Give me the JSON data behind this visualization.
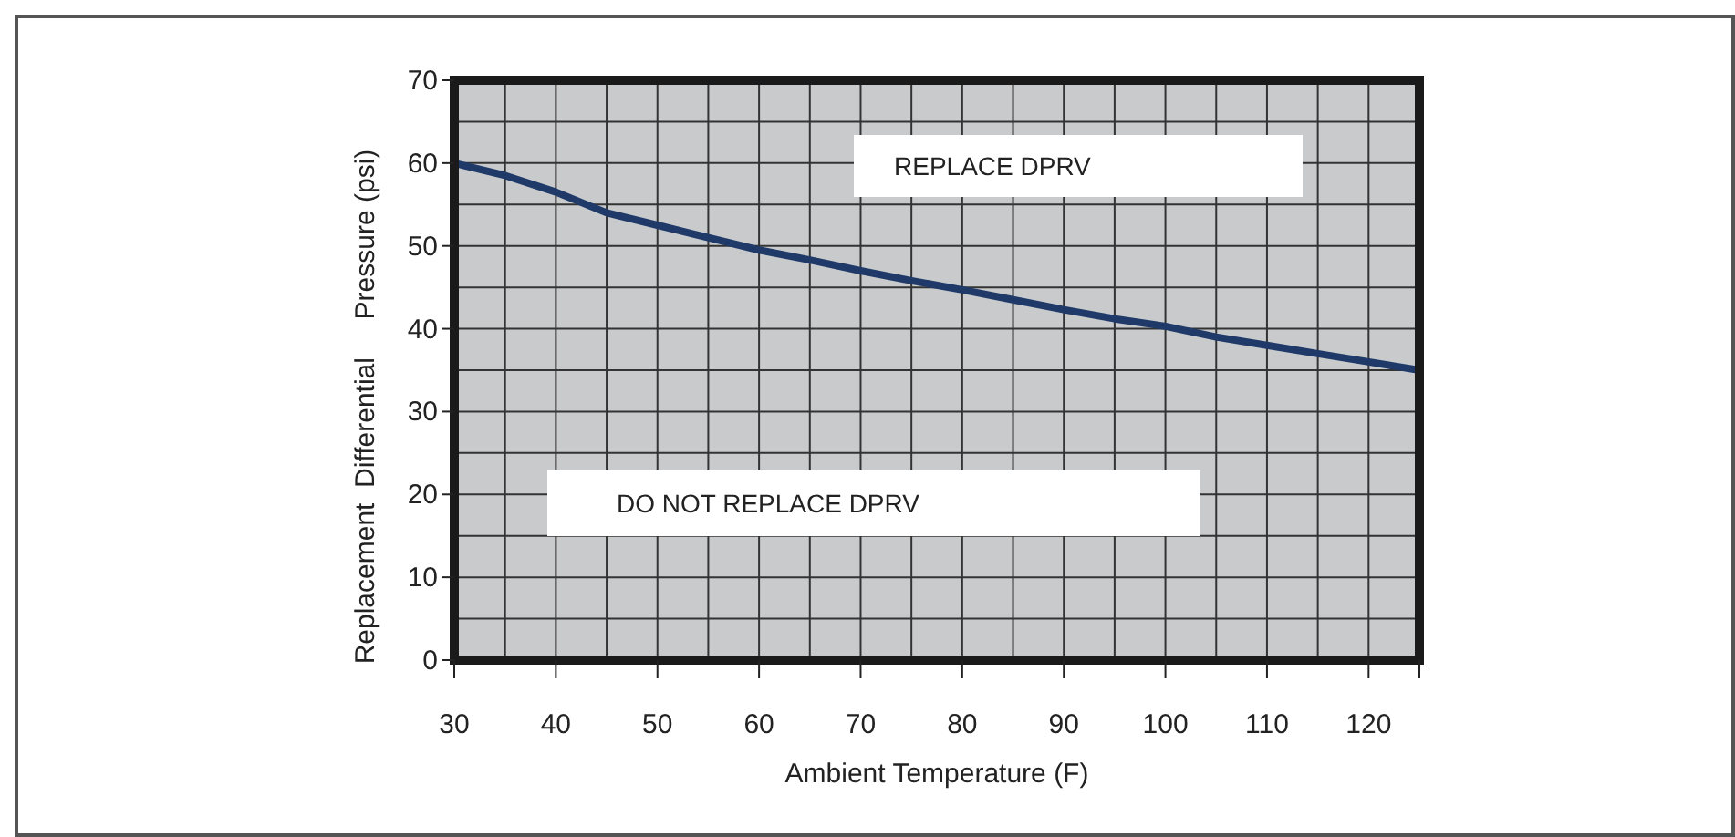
{
  "chart_data": {
    "type": "line",
    "xlabel": "Ambient Temperature (F)",
    "ylabel": "Replacement  Differential     Pressure (psi)",
    "x": [
      30,
      35,
      40,
      45,
      50,
      55,
      60,
      65,
      70,
      75,
      80,
      85,
      90,
      95,
      100,
      105,
      110,
      115,
      120,
      125
    ],
    "series": [
      {
        "color": "#1f3a68",
        "values": [
          60,
          58.5,
          56.5,
          54,
          52.5,
          51,
          49.5,
          48.3,
          47,
          45.8,
          44.7,
          43.5,
          42.3,
          41.2,
          40.3,
          39,
          38,
          37,
          36,
          35
        ]
      }
    ],
    "xlim": [
      30,
      125
    ],
    "ylim": [
      0,
      70
    ],
    "xticks": [
      30,
      40,
      50,
      60,
      70,
      80,
      90,
      100,
      110,
      120,
      {
        "value": 125,
        "label": null
      }
    ],
    "yticks": [
      0,
      10,
      20,
      30,
      40,
      50,
      60,
      70
    ],
    "grid": true,
    "marker": "none",
    "line_style": "solid",
    "annotations": [
      "REPLACE DPRV",
      "DO NOT REPLACE DPRV"
    ]
  }
}
